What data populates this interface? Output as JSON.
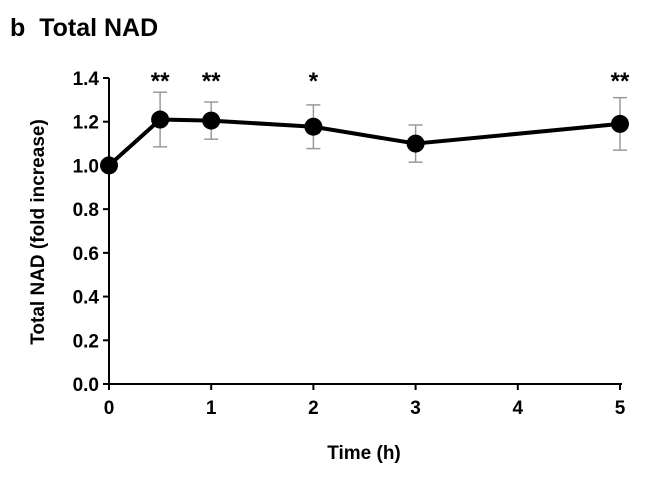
{
  "chart_data": {
    "type": "line",
    "panel_label": "b",
    "title": "Total NAD",
    "xlabel": "Time (h)",
    "ylabel": "Total NAD (fold increase)",
    "xlim": [
      0,
      5
    ],
    "ylim": [
      0,
      1.4
    ],
    "xticks": [
      "0",
      "1",
      "2",
      "3",
      "4",
      "5"
    ],
    "yticks": [
      "0.0",
      "0.2",
      "0.4",
      "0.6",
      "0.8",
      "1.0",
      "1.2",
      "1.4"
    ],
    "grid": false,
    "series": [
      {
        "name": "Total NAD",
        "color": "#000000",
        "x": [
          0,
          0.5,
          1,
          2,
          3,
          5
        ],
        "y": [
          1.0,
          1.21,
          1.205,
          1.177,
          1.1,
          1.19
        ],
        "error": [
          0,
          0.125,
          0.085,
          0.1,
          0.085,
          0.12
        ],
        "significance": [
          "",
          "**",
          "**",
          "*",
          "",
          "**"
        ]
      }
    ],
    "errorbar_color": "#9a9a9a"
  }
}
